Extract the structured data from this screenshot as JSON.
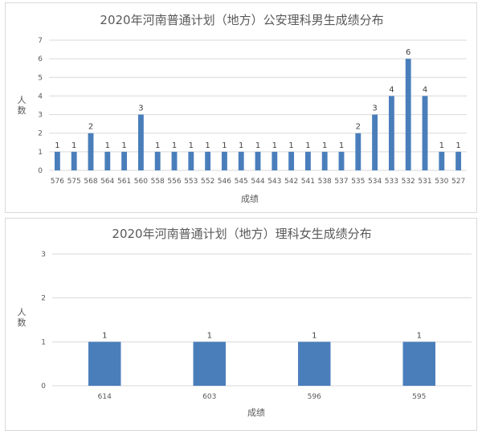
{
  "colors": {
    "bar": "#4a7ebb",
    "grid": "#d9d9d9",
    "text": "#595959"
  },
  "chart_data": [
    {
      "type": "bar",
      "title": "2020年河南普通计划（地方）公安理科男生成绩分布",
      "xlabel": "成绩",
      "ylabel": "人数",
      "ylim": [
        0,
        7
      ],
      "yticks": [
        0,
        1,
        2,
        3,
        4,
        5,
        6,
        7
      ],
      "grid": true,
      "categories": [
        "576",
        "575",
        "568",
        "564",
        "561",
        "560",
        "558",
        "556",
        "553",
        "552",
        "546",
        "545",
        "544",
        "543",
        "542",
        "541",
        "538",
        "537",
        "535",
        "534",
        "533",
        "532",
        "531",
        "530",
        "527"
      ],
      "values": [
        1,
        1,
        2,
        1,
        1,
        3,
        1,
        1,
        1,
        1,
        1,
        1,
        1,
        1,
        1,
        1,
        1,
        1,
        2,
        3,
        4,
        6,
        4,
        1,
        1
      ]
    },
    {
      "type": "bar",
      "title": "2020年河南普通计划（地方）理科女生成绩分布",
      "xlabel": "成绩",
      "ylabel": "人数",
      "ylim": [
        0,
        3
      ],
      "yticks": [
        0,
        1,
        2,
        3
      ],
      "grid": true,
      "categories": [
        "614",
        "603",
        "596",
        "595"
      ],
      "values": [
        1,
        1,
        1,
        1
      ]
    }
  ]
}
